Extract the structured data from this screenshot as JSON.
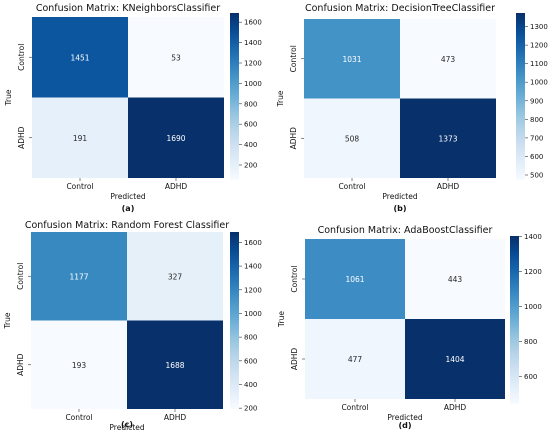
{
  "chart_data": [
    {
      "type": "heatmap",
      "title": "Confusion Matrix: KNeighborsClassifier",
      "xlabel": "Predicted",
      "ylabel": "True",
      "x_categories": [
        "Control",
        "ADHD"
      ],
      "y_categories": [
        "Control",
        "ADHD"
      ],
      "values": [
        [
          1451,
          53
        ],
        [
          191,
          1690
        ]
      ],
      "colorbar": {
        "ticks": [
          200,
          400,
          600,
          800,
          1000,
          1200,
          1400,
          1600
        ],
        "min": 53,
        "max": 1690
      },
      "caption": "(a)"
    },
    {
      "type": "heatmap",
      "title": "Confusion Matrix: DecisionTreeClassifier",
      "xlabel": "Predicted",
      "ylabel": "True",
      "x_categories": [
        "Control",
        "ADHD"
      ],
      "y_categories": [
        "Control",
        "ADHD"
      ],
      "values": [
        [
          1031,
          473
        ],
        [
          508,
          1373
        ]
      ],
      "colorbar": {
        "ticks": [
          500,
          600,
          700,
          800,
          900,
          1000,
          1100,
          1200,
          1300
        ],
        "min": 473,
        "max": 1373
      },
      "caption": "(b)"
    },
    {
      "type": "heatmap",
      "title": "Confusion Matrix: Random Forest Classifier",
      "xlabel": "Predicted",
      "ylabel": "True",
      "x_categories": [
        "Control",
        "ADHD"
      ],
      "y_categories": [
        "Control",
        "ADHD"
      ],
      "values": [
        [
          1177,
          327
        ],
        [
          193,
          1688
        ]
      ],
      "colorbar": {
        "ticks": [
          200,
          400,
          600,
          800,
          1000,
          1200,
          1400,
          1600
        ],
        "min": 193,
        "max": 1688
      },
      "caption": "(c)"
    },
    {
      "type": "heatmap",
      "title": "Confusion Matrix: AdaBoostClassifier",
      "xlabel": "Predicted",
      "ylabel": "True",
      "x_categories": [
        "Control",
        "ADHD"
      ],
      "y_categories": [
        "Control",
        "ADHD"
      ],
      "values": [
        [
          1061,
          443
        ],
        [
          477,
          1404
        ]
      ],
      "colorbar": {
        "ticks": [
          600,
          800,
          1000,
          1200,
          1400
        ],
        "min": 443,
        "max": 1404
      },
      "caption": "(d)"
    }
  ],
  "colors": {
    "colormap": "Blues",
    "light": "#f7fbff",
    "dark": "#08306b",
    "text_on_light": "#262626",
    "text_on_dark": "#ffffff"
  }
}
